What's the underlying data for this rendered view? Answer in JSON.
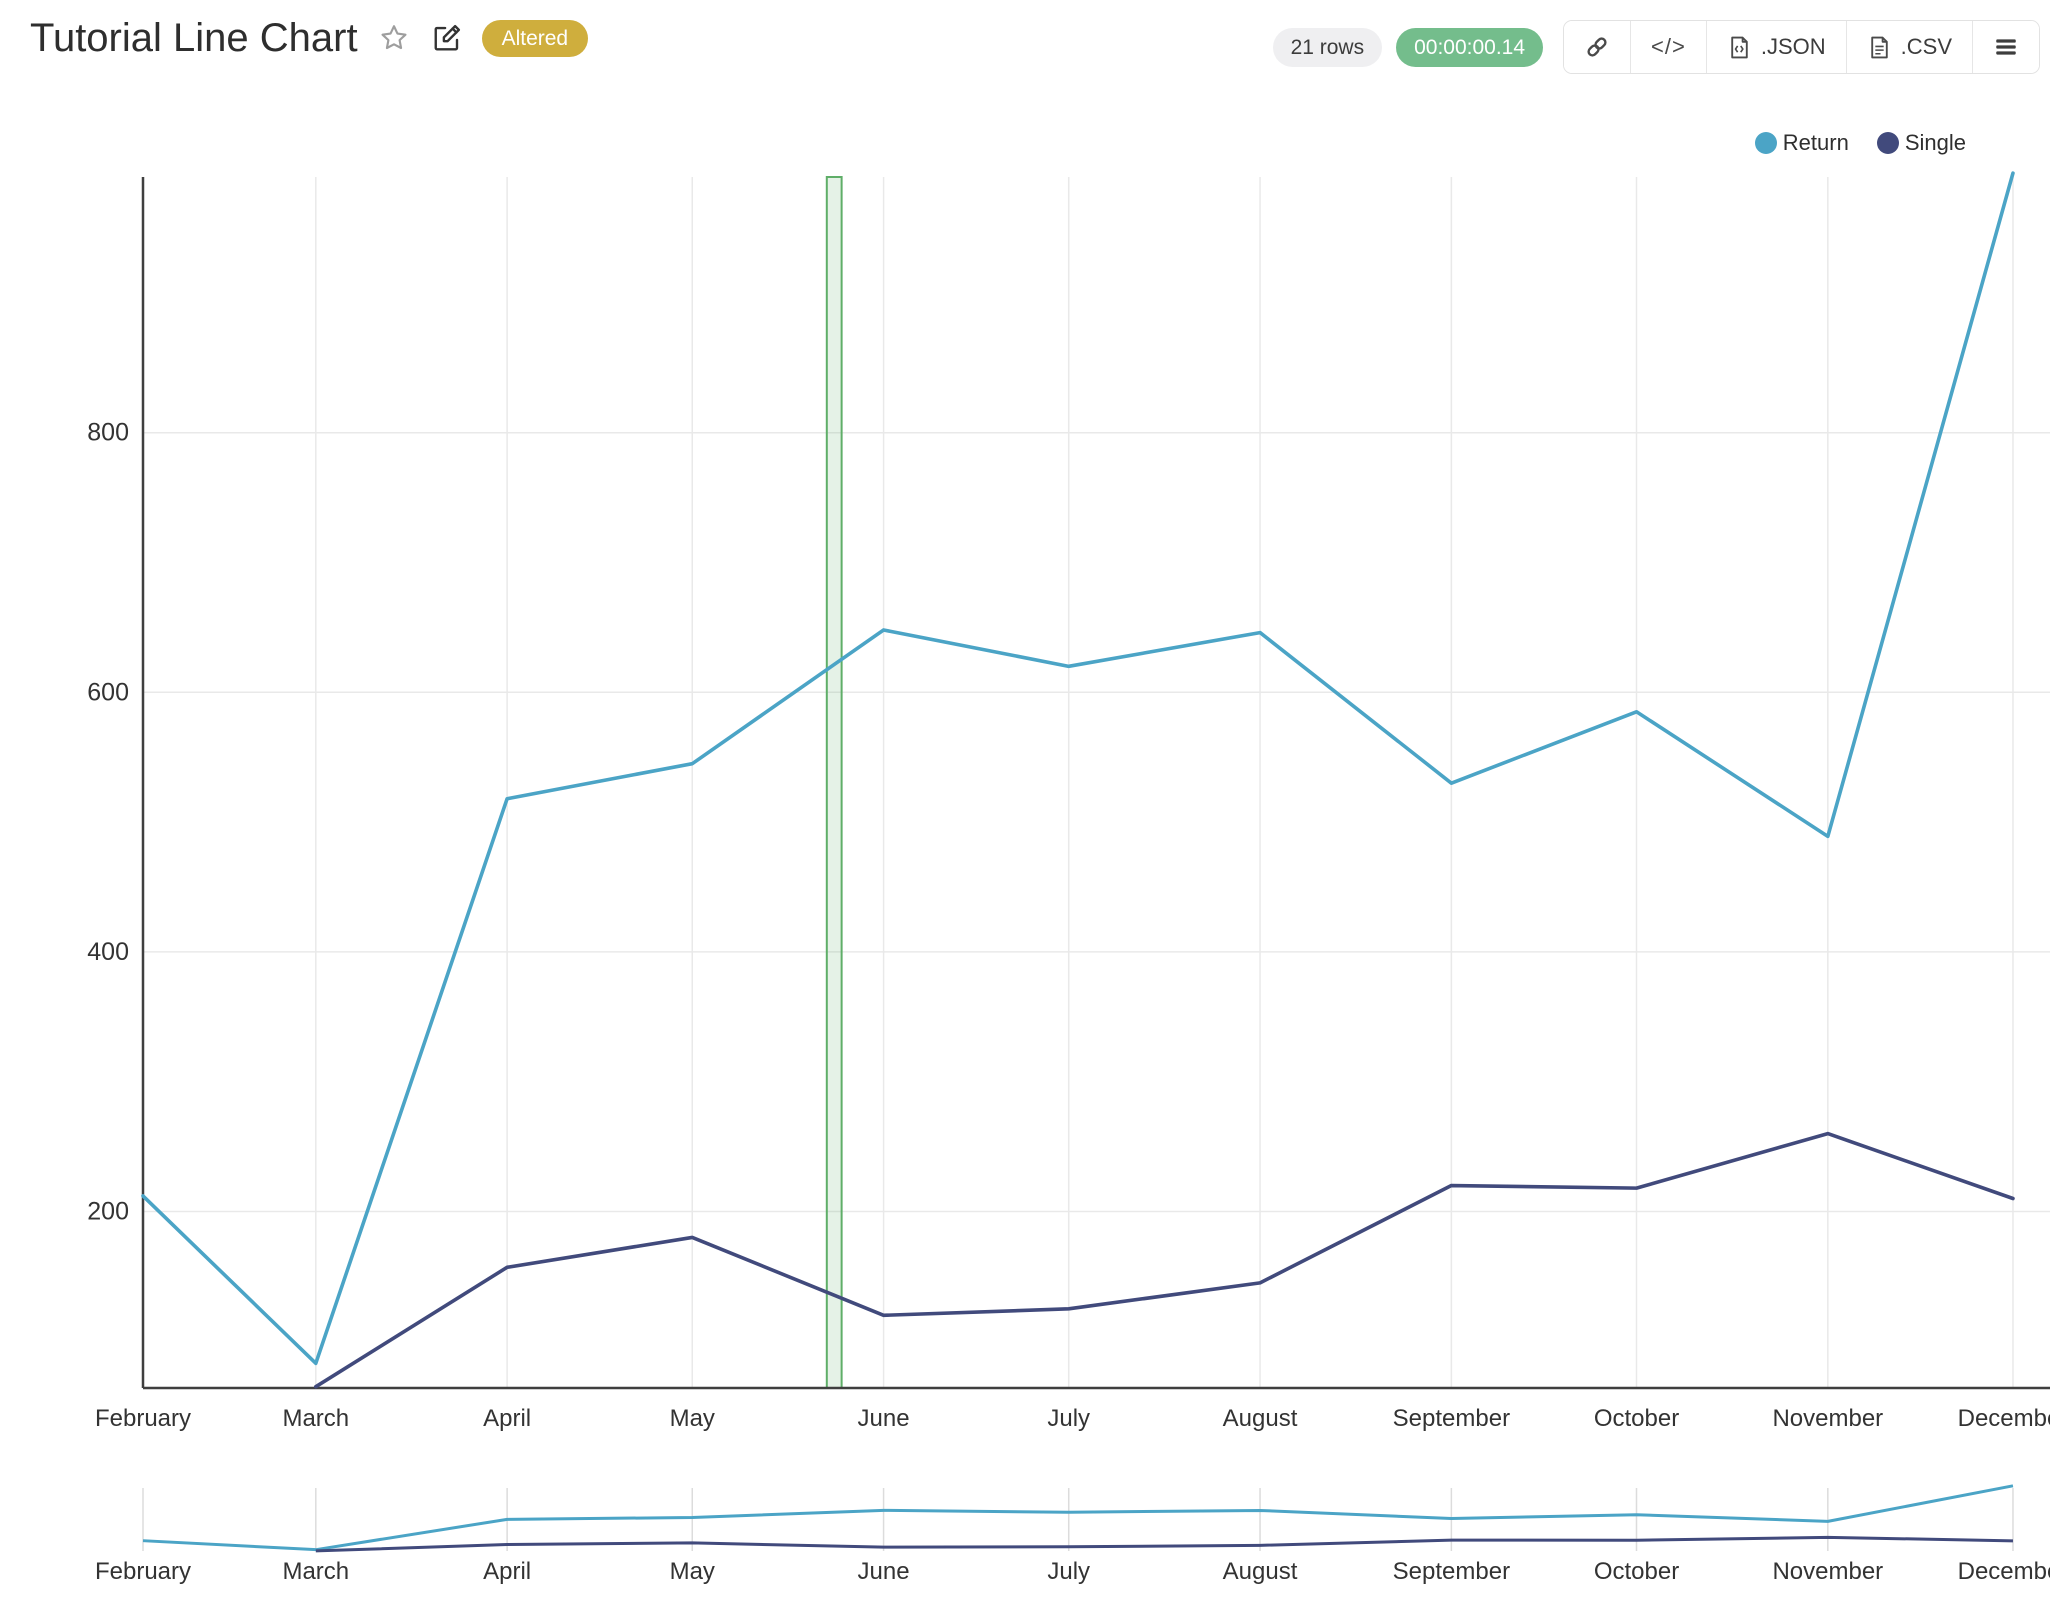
{
  "header": {
    "title": "Tutorial Line Chart",
    "status_badge": "Altered",
    "rows_count": "21 rows",
    "execution_time": "00:00:00.14"
  },
  "toolbar": {
    "embed_glyph": "</>",
    "json_label": ".JSON",
    "csv_label": ".CSV",
    "icons": {
      "favorite": "star-outline-icon",
      "edit": "pencil-square-icon",
      "link": "chain-link-icon",
      "embed": "code-brackets-icon",
      "json_file": "file-json-icon",
      "csv_file": "file-text-icon",
      "menu": "hamburger-menu-icon"
    }
  },
  "legend": {
    "items": [
      {
        "label": "Return",
        "color": "#4ba4c6"
      },
      {
        "label": "Single",
        "color": "#414a7c"
      }
    ]
  },
  "chart_data": {
    "type": "line",
    "x_type": "time",
    "categories": [
      "February",
      "March",
      "April",
      "May",
      "June",
      "July",
      "August",
      "September",
      "October",
      "November",
      "December"
    ],
    "x_day_offsets": [
      0,
      28,
      59,
      89,
      120,
      150,
      181,
      212,
      242,
      273,
      303
    ],
    "xlim_days": [
      0,
      309
    ],
    "series": [
      {
        "name": "Return",
        "color": "#4ba4c6",
        "values": [
          212,
          83,
          518,
          545,
          648,
          620,
          646,
          530,
          585,
          489,
          1000
        ]
      },
      {
        "name": "Single",
        "color": "#414a7c",
        "values": [
          null,
          65,
          157,
          180,
          120,
          125,
          145,
          220,
          218,
          260,
          210
        ]
      }
    ],
    "ylim": [
      64,
      997
    ],
    "yticks": [
      200,
      400,
      600,
      800
    ],
    "grid": true,
    "legend_position": "top-right",
    "selection_band_days": [
      110.8,
      113.2
    ],
    "selection_band_color": "#5fae68",
    "has_overview_strip": true
  },
  "colors": {
    "grid": "#e9e9e9",
    "axis": "#3f3f3f",
    "tick_text": "#333333",
    "band_fill_opacity": 0.16
  }
}
